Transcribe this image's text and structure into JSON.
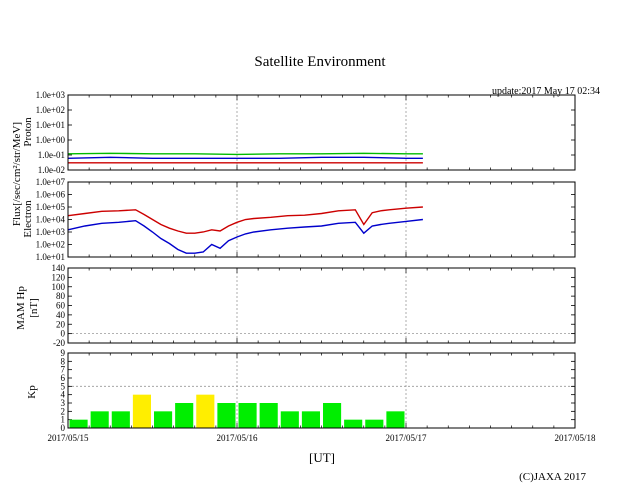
{
  "chart_data": {
    "title": "Satellite Environment",
    "update": "update:2017 May 17 02:34",
    "copyright": "(C)JAXA 2017",
    "xlabel": "[UT]",
    "x_ticks": [
      "2017/05/15",
      "2017/05/16",
      "2017/05/17",
      "2017/05/18"
    ],
    "x_range_days": [
      0,
      3
    ],
    "data_end_day": 2.1,
    "flux_ylabel": "Flux[/sec/cm²/str/MeV]",
    "colors": {
      "red": "#cc0000",
      "blue": "#0000cc",
      "green": "#00bb00",
      "kp_green": "#00ee00",
      "kp_yellow": "#ffee00",
      "grid": "#999999"
    },
    "panels": {
      "proton": {
        "label": "Proton",
        "type": "line",
        "scale": "log",
        "ylim": [
          0.01,
          1000.0
        ],
        "y_ticks": [
          "1.0e-02",
          "1.0e-01",
          "1.0e+00",
          "1.0e+01",
          "1.0e+02",
          "1.0e+03"
        ],
        "series": [
          {
            "color": "green",
            "x": [
              0,
              0.25,
              0.5,
              0.75,
              1.0,
              1.25,
              1.5,
              1.75,
              2.0,
              2.1
            ],
            "y": [
              0.12,
              0.13,
              0.12,
              0.12,
              0.11,
              0.12,
              0.12,
              0.13,
              0.12,
              0.12
            ]
          },
          {
            "color": "blue",
            "x": [
              0,
              0.25,
              0.5,
              0.75,
              1.0,
              1.25,
              1.5,
              1.75,
              2.0,
              2.1
            ],
            "y": [
              0.06,
              0.07,
              0.06,
              0.06,
              0.06,
              0.06,
              0.07,
              0.07,
              0.06,
              0.06
            ]
          },
          {
            "color": "red",
            "x": [
              0,
              0.25,
              0.5,
              0.75,
              1.0,
              1.25,
              1.5,
              1.75,
              2.0,
              2.1
            ],
            "y": [
              0.03,
              0.03,
              0.03,
              0.03,
              0.03,
              0.03,
              0.03,
              0.03,
              0.03,
              0.03
            ]
          }
        ]
      },
      "electron": {
        "label": "Electron",
        "type": "line",
        "scale": "log",
        "ylim": [
          10.0,
          10000000.0
        ],
        "y_ticks": [
          "1.0e+01",
          "1.0e+02",
          "1.0e+03",
          "1.0e+04",
          "1.0e+05",
          "1.0e+06",
          "1.0e+07"
        ],
        "series": [
          {
            "color": "red",
            "x": [
              0,
              0.1,
              0.2,
              0.3,
              0.4,
              0.45,
              0.5,
              0.55,
              0.6,
              0.65,
              0.7,
              0.75,
              0.8,
              0.85,
              0.9,
              0.95,
              1.0,
              1.05,
              1.1,
              1.2,
              1.3,
              1.4,
              1.5,
              1.6,
              1.7,
              1.75,
              1.8,
              1.85,
              1.9,
              2.0,
              2.1
            ],
            "y": [
              20000.0,
              30000.0,
              45000.0,
              50000.0,
              60000.0,
              25000.0,
              10000.0,
              4000.0,
              2000.0,
              1200.0,
              800.0,
              800.0,
              1000.0,
              1500.0,
              1200.0,
              3000.0,
              6000.0,
              10000.0,
              12000.0,
              15000.0,
              20000.0,
              22000.0,
              30000.0,
              50000.0,
              60000.0,
              4000.0,
              35000.0,
              50000.0,
              60000.0,
              80000.0,
              100000.0
            ]
          },
          {
            "color": "blue",
            "x": [
              0,
              0.1,
              0.2,
              0.3,
              0.4,
              0.45,
              0.5,
              0.55,
              0.6,
              0.65,
              0.7,
              0.75,
              0.8,
              0.85,
              0.9,
              0.95,
              1.0,
              1.05,
              1.1,
              1.2,
              1.3,
              1.4,
              1.5,
              1.6,
              1.7,
              1.75,
              1.8,
              1.85,
              1.9,
              2.0,
              2.1
            ],
            "y": [
              1500.0,
              3000.0,
              5000.0,
              6000.0,
              8000.0,
              3000.0,
              1000.0,
              300.0,
              120.0,
              40.0,
              20.0,
              20.0,
              25.0,
              100.0,
              50.0,
              200.0,
              400.0,
              700.0,
              1000.0,
              1500.0,
              2000.0,
              2500.0,
              3000.0,
              5000.0,
              6000.0,
              800.0,
              3000.0,
              4000.0,
              5000.0,
              7000.0,
              10000.0
            ]
          }
        ]
      },
      "mam": {
        "label": "MAM Hp",
        "unit": "[nT]",
        "scale": "linear",
        "ylim": [
          -20,
          140
        ],
        "y_ticks": [
          "-20",
          "0",
          "20",
          "40",
          "60",
          "80",
          "100",
          "120",
          "140"
        ]
      },
      "kp": {
        "label": "Kp",
        "type": "bar",
        "scale": "linear",
        "ylim": [
          0,
          9
        ],
        "y_ticks": [
          "0",
          "1",
          "2",
          "3",
          "4",
          "5",
          "6",
          "7",
          "8",
          "9"
        ],
        "bar_step_days": 0.125,
        "values": [
          1,
          2,
          2,
          4,
          2,
          3,
          4,
          3,
          3,
          3,
          2,
          2,
          3,
          1,
          1,
          2
        ],
        "highlight": [
          3,
          6
        ]
      }
    }
  }
}
